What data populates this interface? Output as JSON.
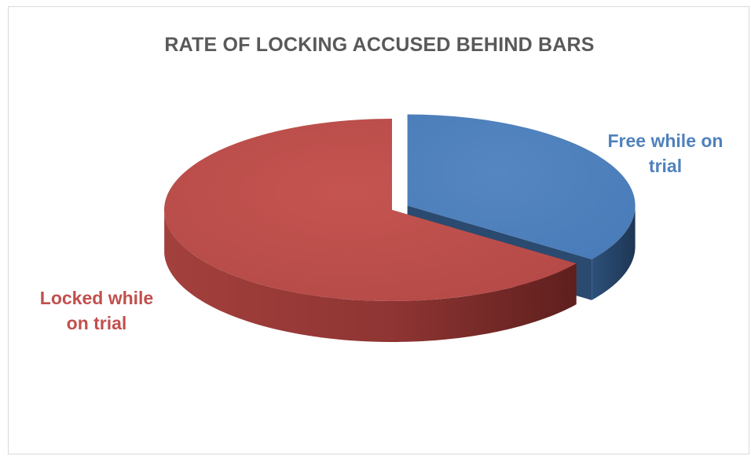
{
  "chart_data": {
    "type": "pie",
    "title": "RATE OF LOCKING ACCUSED BEHIND BARS",
    "slices": [
      {
        "label": "Free while on trial",
        "label_lines": [
          "Free while on",
          "trial"
        ],
        "value": 35,
        "color": "#4f81bd",
        "side_color": "#2b4a70",
        "exploded": true
      },
      {
        "label": "Locked while on trial",
        "label_lines": [
          "Locked while",
          "on trial"
        ],
        "value": 65,
        "color": "#c0504d",
        "side_color": "#7d2a28",
        "exploded": false
      }
    ],
    "legend": "none",
    "style": "3d"
  }
}
